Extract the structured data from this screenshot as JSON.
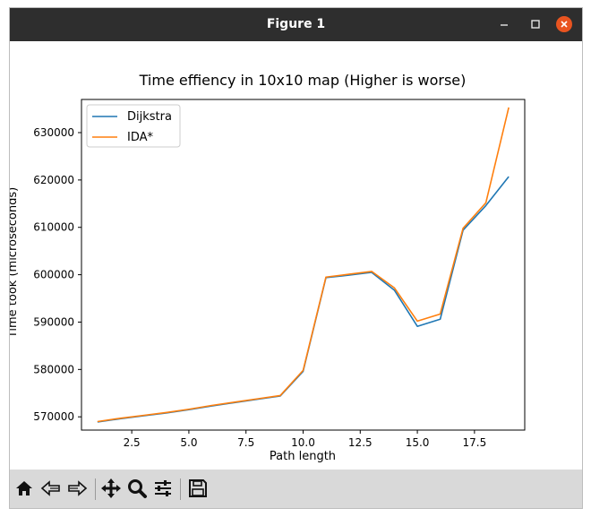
{
  "window": {
    "title": "Figure 1",
    "minimize_icon": "minimize-icon",
    "maximize_icon": "maximize-icon",
    "close_icon": "close-icon",
    "close_color": "#e95420"
  },
  "toolbar": {
    "buttons": [
      {
        "name": "home",
        "icon": "home-icon"
      },
      {
        "name": "back",
        "icon": "back-arrow-icon"
      },
      {
        "name": "forward",
        "icon": "forward-arrow-icon"
      },
      {
        "name": "pan",
        "icon": "move-icon"
      },
      {
        "name": "zoom",
        "icon": "zoom-icon"
      },
      {
        "name": "configure-subplots",
        "icon": "sliders-icon"
      },
      {
        "name": "save",
        "icon": "save-icon"
      }
    ]
  },
  "chart_data": {
    "type": "line",
    "title": "Time effiency in 10x10 map (Higher is worse)",
    "xlabel": "Path length",
    "ylabel": "Time took (microseconds)",
    "xlim": [
      0.3,
      19.7
    ],
    "ylim": [
      567200,
      637000
    ],
    "xticks": [
      "2.5",
      "5.0",
      "7.5",
      "10.0",
      "12.5",
      "15.0",
      "17.5"
    ],
    "yticks": [
      "570000",
      "580000",
      "590000",
      "600000",
      "610000",
      "620000",
      "630000"
    ],
    "legend_position": "top-left",
    "grid": false,
    "series": [
      {
        "name": "Dijkstra",
        "color": "#1f77b4",
        "x": [
          1,
          2,
          3,
          4,
          5,
          6,
          7,
          8,
          9,
          10,
          11,
          12,
          13,
          14,
          15,
          16,
          17,
          18,
          19
        ],
        "y": [
          568900,
          569600,
          570200,
          570800,
          571500,
          572300,
          573000,
          573700,
          574400,
          579600,
          599400,
          599900,
          600500,
          596700,
          589100,
          590600,
          609400,
          614600,
          620700
        ]
      },
      {
        "name": "IDA*",
        "color": "#ff7f0e",
        "x": [
          1,
          2,
          3,
          4,
          5,
          6,
          7,
          8,
          9,
          10,
          11,
          12,
          13,
          14,
          15,
          16,
          17,
          18,
          19
        ],
        "y": [
          569000,
          569700,
          570300,
          570900,
          571600,
          572400,
          573100,
          573800,
          574500,
          579800,
          599500,
          600100,
          600700,
          597200,
          590200,
          591700,
          609800,
          615200,
          635300
        ]
      }
    ]
  }
}
